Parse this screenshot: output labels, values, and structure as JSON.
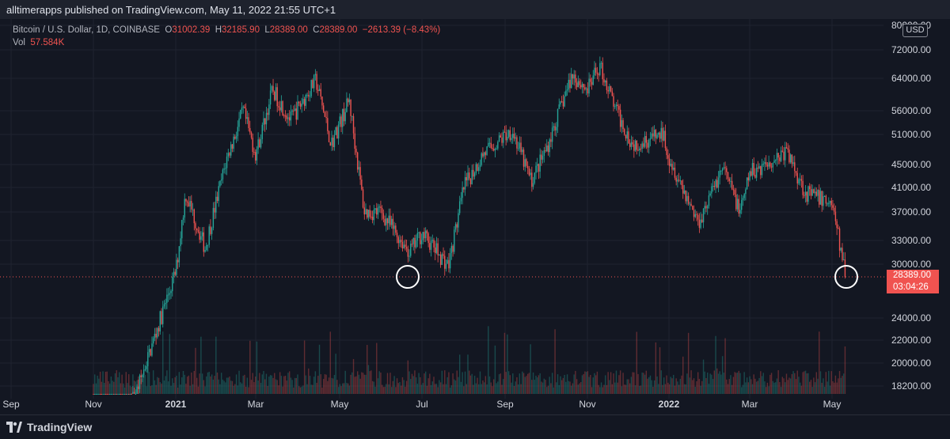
{
  "header": {
    "publisher_text": "alltimerapps published on TradingView.com, May 11, 2022 21:55 UTC+1"
  },
  "legend": {
    "symbol": "Bitcoin / U.S. Dollar, 1D, COINBASE",
    "o_label": "O",
    "o_value": "31002.39",
    "h_label": "H",
    "h_value": "32185.90",
    "l_label": "L",
    "l_value": "28389.00",
    "c_label": "C",
    "c_value": "28389.00",
    "change": "−2613.39 (−8.43%)",
    "vol_label": "Vol",
    "vol_value": "57.584K"
  },
  "currency": "USD",
  "price_tag": {
    "price": "28389.00",
    "countdown": "03:04:26"
  },
  "footer": {
    "brand": "TradingView"
  },
  "colors": {
    "up": "#26a69a",
    "down": "#ef5350",
    "background": "#131722",
    "grid": "#1f2330"
  },
  "chart_data": {
    "type": "candlestick",
    "title": "Bitcoin / U.S. Dollar, 1D, COINBASE",
    "y_scale": "log",
    "ylim": [
      17500,
      80000
    ],
    "y_ticks": [
      80000,
      72000,
      64000,
      56000,
      51000,
      45000,
      41000,
      37000,
      33000,
      30000,
      24000,
      22000,
      20000,
      18200
    ],
    "x_ticks": [
      "Sep",
      "Nov",
      "2021",
      "Mar",
      "May",
      "Jul",
      "Sep",
      "Nov",
      "2022",
      "Mar",
      "May"
    ],
    "last_price": 28389.0,
    "grid": true,
    "annotations": [
      "circle at 2021 July low",
      "circle at last close May 2022"
    ],
    "close_anchors": [
      [
        "Nov",
        13500
      ],
      [
        "Dec",
        17500
      ],
      [
        "2021",
        29000
      ],
      [
        "Jan 8",
        40000
      ],
      [
        "Jan 22",
        32000
      ],
      [
        "Feb 8",
        46000
      ],
      [
        "Feb 21",
        56000
      ],
      [
        "Mar",
        47000
      ],
      [
        "Mar 13",
        61000
      ],
      [
        "Mar 26",
        54000
      ],
      [
        "Apr 14",
        63500
      ],
      [
        "Apr 25",
        49000
      ],
      [
        "May 8",
        58500
      ],
      [
        "May 19",
        37000
      ],
      [
        "Jun 1",
        37000
      ],
      [
        "Jun 22",
        31500
      ],
      [
        "Jul",
        34000
      ],
      [
        "Jul 20",
        29800
      ],
      [
        "Aug",
        41000
      ],
      [
        "Aug 15",
        47000
      ],
      [
        "Sep 6",
        52000
      ],
      [
        "Sep 20",
        42000
      ],
      [
        "Oct 1",
        48000
      ],
      [
        "Oct 20",
        65000
      ],
      [
        "Nov",
        61000
      ],
      [
        "Nov 10",
        67500
      ],
      [
        "Nov 22",
        56000
      ],
      [
        "Dec 4",
        49000
      ],
      [
        "Dec 27",
        51000
      ],
      [
        "2022",
        46500
      ],
      [
        "Jan 22",
        35500
      ],
      [
        "Feb 10",
        44500
      ],
      [
        "Feb 24",
        37000
      ],
      [
        "Mar",
        43500
      ],
      [
        "Mar 28",
        47500
      ],
      [
        "Apr 12",
        40000
      ],
      [
        "May",
        38500
      ],
      [
        "May 11",
        28389
      ]
    ]
  }
}
